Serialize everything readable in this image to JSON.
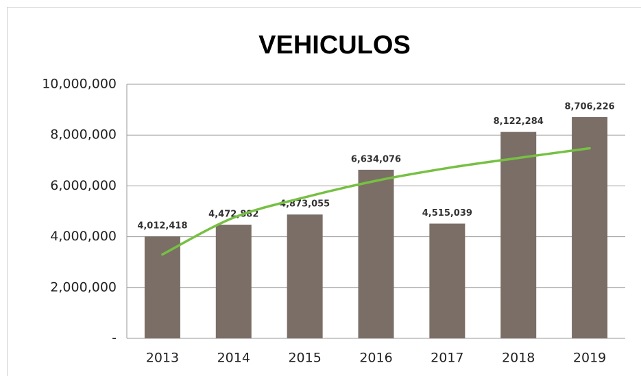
{
  "chart_data": {
    "type": "bar",
    "title": "VEHICULOS",
    "categories": [
      "2013",
      "2014",
      "2015",
      "2016",
      "2017",
      "2018",
      "2019"
    ],
    "values": [
      4012418,
      4472882,
      4873055,
      6634076,
      4515039,
      8122284,
      8706226
    ],
    "value_labels": [
      "4,012,418",
      "4,472,882",
      "4,873,055",
      "6,634,076",
      "4,515,039",
      "8,122,284",
      "8,706,226"
    ],
    "color": "#7a6e66",
    "trendline": {
      "color": "#77c043",
      "values": [
        3300000,
        4750000,
        5550000,
        6200000,
        6700000,
        7100000,
        7480000
      ]
    },
    "ylim": [
      0,
      10000000
    ],
    "yticks": [
      {
        "value": 0,
        "label": "-"
      },
      {
        "value": 2000000,
        "label": "2,000,000"
      },
      {
        "value": 4000000,
        "label": "4,000,000"
      },
      {
        "value": 6000000,
        "label": "6,000,000"
      },
      {
        "value": 8000000,
        "label": "8,000,000"
      },
      {
        "value": 10000000,
        "label": "10,000,000"
      }
    ],
    "grid": true
  }
}
